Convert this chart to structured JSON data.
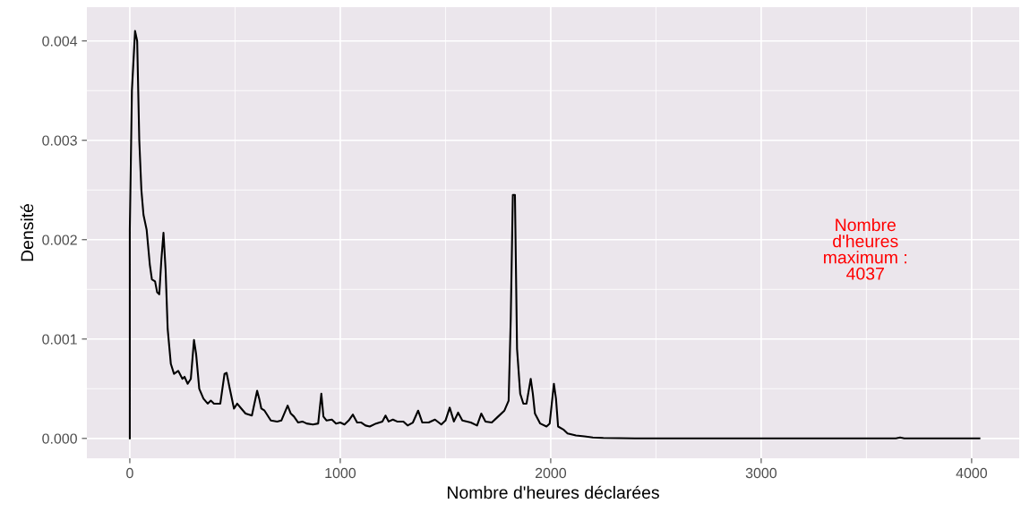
{
  "chart_data": {
    "type": "line",
    "xlabel": "Nombre d'heures déclarées",
    "ylabel": "Densité",
    "x": [
      0,
      0,
      10,
      25,
      35,
      45,
      55,
      65,
      80,
      95,
      105,
      120,
      130,
      140,
      150,
      160,
      170,
      180,
      195,
      210,
      230,
      250,
      260,
      275,
      290,
      305,
      315,
      330,
      350,
      370,
      385,
      400,
      430,
      450,
      460,
      475,
      495,
      510,
      530,
      550,
      580,
      605,
      615,
      625,
      640,
      670,
      700,
      720,
      750,
      765,
      780,
      800,
      820,
      840,
      870,
      895,
      910,
      920,
      935,
      960,
      980,
      1000,
      1020,
      1040,
      1060,
      1080,
      1100,
      1120,
      1140,
      1170,
      1200,
      1215,
      1230,
      1250,
      1270,
      1300,
      1320,
      1345,
      1370,
      1390,
      1420,
      1450,
      1480,
      1500,
      1520,
      1540,
      1560,
      1580,
      1620,
      1650,
      1670,
      1690,
      1720,
      1750,
      1780,
      1800,
      1810,
      1820,
      1830,
      1840,
      1855,
      1870,
      1885,
      1905,
      1915,
      1925,
      1950,
      1980,
      1995,
      2015,
      2025,
      2035,
      2060,
      2080,
      2120,
      2160,
      2200,
      2250,
      2400,
      3000,
      3640,
      3660,
      3680,
      4037
    ],
    "values": [
      0,
      0.0021,
      0.0035,
      0.0041,
      0.004,
      0.003,
      0.0025,
      0.00225,
      0.0021,
      0.00175,
      0.0016,
      0.00158,
      0.00147,
      0.00145,
      0.0018,
      0.00207,
      0.0017,
      0.0011,
      0.00075,
      0.00065,
      0.00068,
      0.0006,
      0.00062,
      0.00055,
      0.0006,
      0.00099,
      0.00085,
      0.0005,
      0.0004,
      0.00035,
      0.00038,
      0.00035,
      0.00035,
      0.00065,
      0.00066,
      0.0005,
      0.0003,
      0.00035,
      0.0003,
      0.00025,
      0.00023,
      0.00048,
      0.0004,
      0.0003,
      0.00028,
      0.00018,
      0.00017,
      0.00018,
      0.00033,
      0.00025,
      0.00022,
      0.00016,
      0.00017,
      0.00015,
      0.00014,
      0.00015,
      0.00045,
      0.00022,
      0.00018,
      0.00019,
      0.00015,
      0.00016,
      0.00014,
      0.00018,
      0.00024,
      0.00016,
      0.00016,
      0.00013,
      0.00012,
      0.00015,
      0.00017,
      0.00023,
      0.00017,
      0.00019,
      0.00017,
      0.00017,
      0.00013,
      0.00016,
      0.00028,
      0.00016,
      0.00016,
      0.00019,
      0.00014,
      0.00018,
      0.00031,
      0.00017,
      0.00026,
      0.00018,
      0.00016,
      0.00013,
      0.00025,
      0.00017,
      0.00016,
      0.00022,
      0.00028,
      0.00038,
      0.0012,
      0.00245,
      0.00245,
      0.0009,
      0.00045,
      0.00035,
      0.00035,
      0.0006,
      0.00045,
      0.00025,
      0.00015,
      0.00012,
      0.00015,
      0.00055,
      0.0004,
      0.00012,
      9e-05,
      5e-05,
      3e-05,
      2e-05,
      1e-05,
      5e-06,
      0,
      0,
      0,
      1e-05,
      0,
      0
    ],
    "color": "#000000",
    "xlim": [
      -204,
      4226
    ],
    "ylim": [
      -0.0002,
      0.00434
    ],
    "xticks": [
      0,
      1000,
      2000,
      3000,
      4000
    ],
    "yticks": [
      {
        "value": 0,
        "label": "0.000"
      },
      {
        "value": 0.001,
        "label": "0.001"
      },
      {
        "value": 0.002,
        "label": "0.002"
      },
      {
        "value": 0.003,
        "label": "0.003"
      },
      {
        "value": 0.004,
        "label": "0.004"
      }
    ],
    "grid": true,
    "legend": false,
    "annotations": [
      "Nombre\nd'heures\nmaximum :\n4037"
    ]
  }
}
